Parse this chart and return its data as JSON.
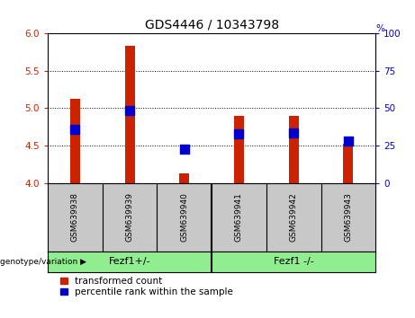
{
  "title": "GDS4446 / 10343798",
  "samples": [
    "GSM639938",
    "GSM639939",
    "GSM639940",
    "GSM639941",
    "GSM639942",
    "GSM639943"
  ],
  "red_values": [
    5.12,
    5.83,
    4.13,
    4.9,
    4.9,
    4.52
  ],
  "blue_values": [
    4.72,
    4.97,
    4.45,
    4.65,
    4.67,
    4.56
  ],
  "ylim": [
    4.0,
    6.0
  ],
  "yticks_left": [
    4.0,
    4.5,
    5.0,
    5.5,
    6.0
  ],
  "yticks_right": [
    0,
    25,
    50,
    75,
    100
  ],
  "bar_color": "#CC2200",
  "dot_color": "#0000CC",
  "bar_width": 0.18,
  "dot_size": 55,
  "title_fontsize": 10,
  "tick_fontsize": 7.5,
  "legend_fontsize": 7.5,
  "gray_bg": "#C8C8C8",
  "green_bg": "#90EE90",
  "left_tick_color": "#CC2200",
  "right_tick_color": "#0000CC",
  "genotype_label": "genotype/variation",
  "legend_items": [
    "transformed count",
    "percentile rank within the sample"
  ],
  "group1_label": "Fezf1+/-",
  "group2_label": "Fezf1 -/-",
  "group_divider_after": 2
}
